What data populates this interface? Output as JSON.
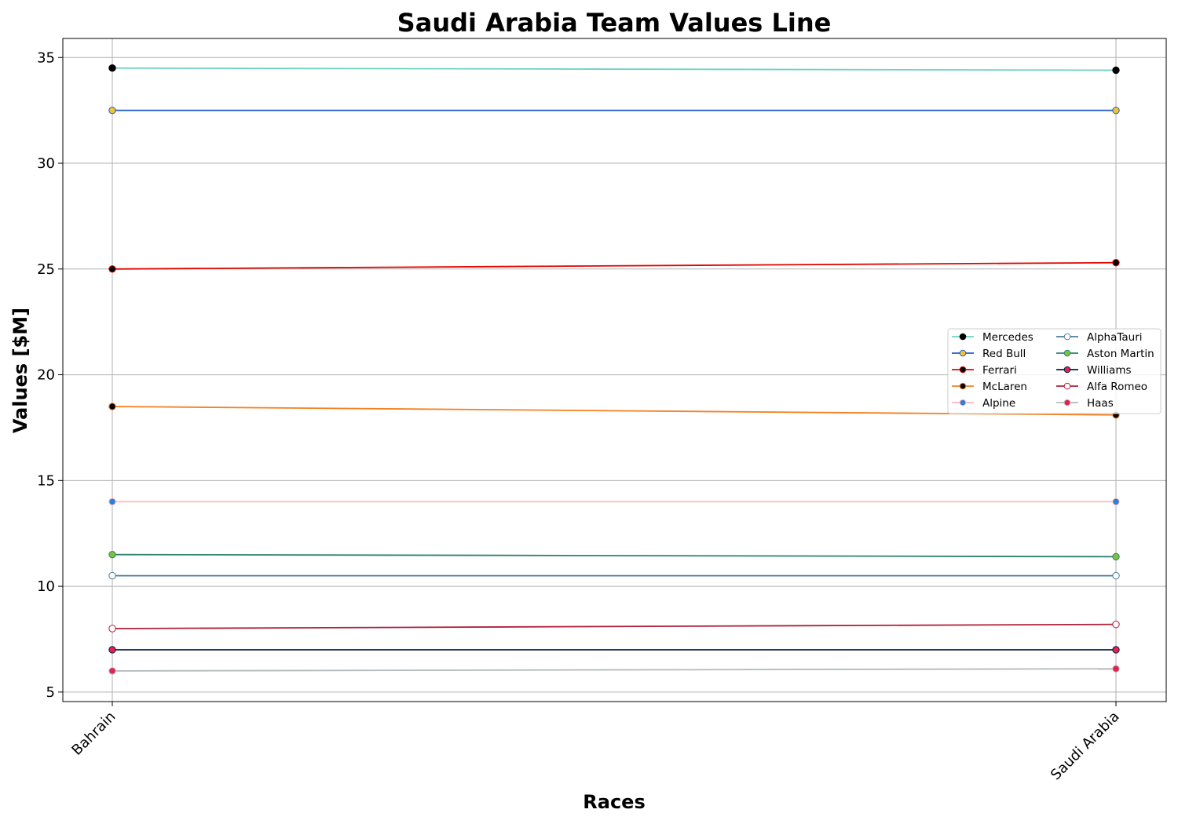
{
  "chart_data": {
    "type": "line",
    "title": "Saudi Arabia Team Values Line",
    "xlabel": "Races",
    "ylabel": "Values [$M]",
    "categories": [
      "Bahrain",
      "Saudi Arabia"
    ],
    "ylim": [
      4.55,
      35.9
    ],
    "yticks": [
      5,
      10,
      15,
      20,
      25,
      30,
      35
    ],
    "grid": true,
    "legend_position": "center-right",
    "legend_columns": 2,
    "series": [
      {
        "name": "Mercedes",
        "values": [
          34.5,
          34.4
        ],
        "color": "#6CD3BF",
        "marker_fill": "#000000",
        "marker_edge": "#000000"
      },
      {
        "name": "Red Bull",
        "values": [
          32.5,
          32.5
        ],
        "color": "#1E5BC6",
        "marker_fill": "#F4C430",
        "marker_edge": "#1E5BC6"
      },
      {
        "name": "Ferrari",
        "values": [
          25.0,
          25.3
        ],
        "color": "#E10600",
        "marker_fill": "#000000",
        "marker_edge": "#E10600"
      },
      {
        "name": "McLaren",
        "values": [
          18.5,
          18.1
        ],
        "color": "#F58020",
        "marker_fill": "#000000",
        "marker_edge": "#F58020"
      },
      {
        "name": "Alpine",
        "values": [
          14.0,
          14.0
        ],
        "color": "#FFB6C1",
        "marker_fill": "#2B7FD6",
        "marker_edge": "#FFB6C1"
      },
      {
        "name": "AlphaTauri",
        "values": [
          10.5,
          10.5
        ],
        "color": "#4E7C9B",
        "marker_fill": "#FFFFFF",
        "marker_edge": "#4E7C9B"
      },
      {
        "name": "Aston Martin",
        "values": [
          11.5,
          11.4
        ],
        "color": "#2D826D",
        "marker_fill": "#7CC242",
        "marker_edge": "#2D826D"
      },
      {
        "name": "Williams",
        "values": [
          7.0,
          7.0
        ],
        "color": "#0A1E46",
        "marker_fill": "#E0234E",
        "marker_edge": "#0A1E46"
      },
      {
        "name": "Alfa Romeo",
        "values": [
          8.0,
          8.2
        ],
        "color": "#B12039",
        "marker_fill": "#FFFFFF",
        "marker_edge": "#B12039"
      },
      {
        "name": "Haas",
        "values": [
          6.0,
          6.1
        ],
        "color": "#B6BABD",
        "marker_fill": "#E0234E",
        "marker_edge": "#B6BABD"
      }
    ]
  }
}
